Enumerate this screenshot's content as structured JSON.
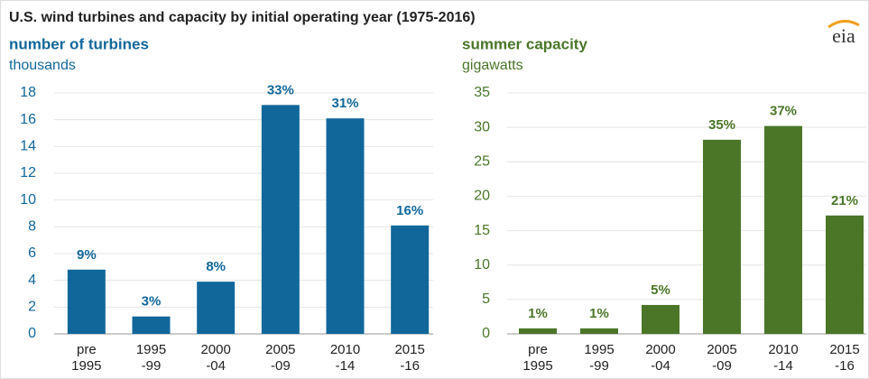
{
  "title": "U.S. wind turbines and capacity by initial operating year (1975-2016)",
  "logo": "eia",
  "chart_data": [
    {
      "type": "bar",
      "title": "number of turbines",
      "subtitle": "thousands",
      "color": "#11679a",
      "categories": [
        [
          "pre",
          "1995"
        ],
        [
          "1995",
          "-99"
        ],
        [
          "2000",
          "-04"
        ],
        [
          "2005",
          "-09"
        ],
        [
          "2010",
          "-14"
        ],
        [
          "2015",
          "-16"
        ]
      ],
      "values": [
        4.8,
        1.3,
        3.9,
        17.1,
        16.1,
        8.1
      ],
      "bar_labels": [
        "9%",
        "3%",
        "8%",
        "33%",
        "31%",
        "16%"
      ],
      "ylim": [
        0,
        18
      ],
      "yticks": [
        0,
        2,
        4,
        6,
        8,
        10,
        12,
        14,
        16,
        18
      ],
      "grid": true
    },
    {
      "type": "bar",
      "title": "summer capacity",
      "subtitle": "gigawatts",
      "color": "#4b7628",
      "categories": [
        [
          "pre",
          "1995"
        ],
        [
          "1995",
          "-99"
        ],
        [
          "2000",
          "-04"
        ],
        [
          "2005",
          "-09"
        ],
        [
          "2010",
          "-14"
        ],
        [
          "2015",
          "-16"
        ]
      ],
      "values": [
        0.8,
        0.8,
        4.2,
        28.2,
        30.2,
        17.2
      ],
      "bar_labels": [
        "1%",
        "1%",
        "5%",
        "35%",
        "37%",
        "21%"
      ],
      "ylim": [
        0,
        35
      ],
      "yticks": [
        0,
        5,
        10,
        15,
        20,
        25,
        30,
        35
      ],
      "grid": true
    }
  ]
}
